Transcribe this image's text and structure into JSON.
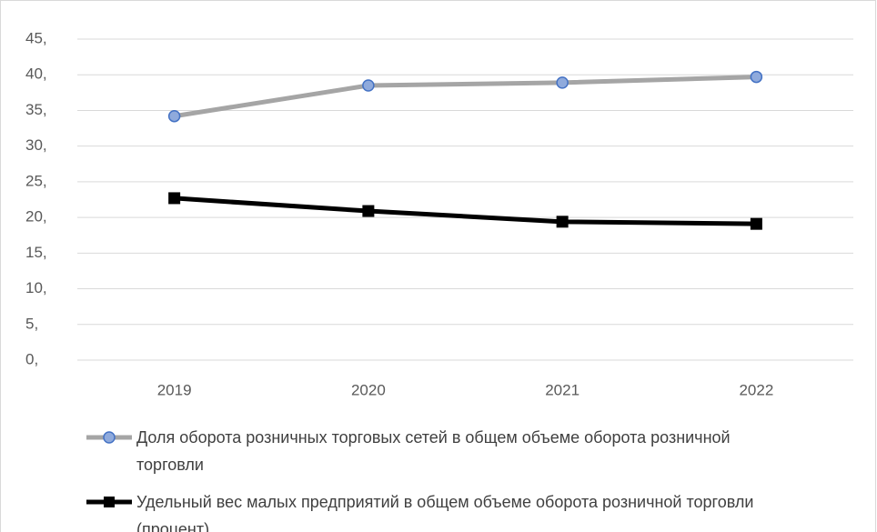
{
  "chart_data": {
    "type": "line",
    "categories": [
      "2019",
      "2020",
      "2021",
      "2022"
    ],
    "series": [
      {
        "name": "Доля оборота розничных торговых сетей в общем объеме оборота розничной торговли",
        "color": "#a5a5a5",
        "marker": "circle",
        "marker_color": "#8faadc",
        "marker_edge": "#4472c4",
        "values": [
          34.2,
          38.5,
          38.9,
          39.7
        ]
      },
      {
        "name": "Удельный вес малых предприятий в общем объеме оборота розничной торговли (процент)",
        "color": "#000000",
        "marker": "square",
        "marker_color": "#000000",
        "marker_edge": "#000000",
        "values": [
          22.7,
          20.9,
          19.4,
          19.1
        ]
      }
    ],
    "ylim": [
      0,
      45
    ],
    "yticks": [
      {
        "value": 0,
        "label": "0,"
      },
      {
        "value": 5,
        "label": "5,"
      },
      {
        "value": 10,
        "label": "10,"
      },
      {
        "value": 15,
        "label": "15,"
      },
      {
        "value": 20,
        "label": "20,"
      },
      {
        "value": 25,
        "label": "25,"
      },
      {
        "value": 30,
        "label": "30,"
      },
      {
        "value": 35,
        "label": "35,"
      },
      {
        "value": 40,
        "label": "40,"
      },
      {
        "value": 45,
        "label": "45,"
      }
    ],
    "grid": true,
    "legend": "bottom"
  }
}
